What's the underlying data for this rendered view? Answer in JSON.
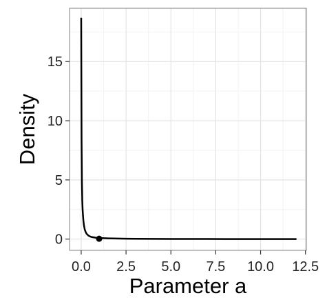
{
  "chart_data": {
    "type": "line",
    "xlabel": "Parameter a",
    "ylabel": "Density",
    "xlim": [
      -0.65,
      12.55
    ],
    "ylim": [
      -0.95,
      19.5
    ],
    "x_ticks": [
      0.0,
      2.5,
      5.0,
      7.5,
      10.0,
      12.5
    ],
    "x_tick_labels": [
      "0.0",
      "2.5",
      "5.0",
      "7.5",
      "10.0",
      "12.5"
    ],
    "y_ticks": [
      0,
      5,
      10,
      15
    ],
    "y_tick_labels": [
      "0",
      "5",
      "10",
      "15"
    ],
    "grid": true,
    "series": [
      {
        "x": [
          0.0,
          0.02,
          0.04,
          0.06,
          0.08,
          0.1,
          0.12,
          0.15,
          0.2,
          0.25,
          0.3,
          0.4,
          0.5,
          0.6,
          0.8,
          1.0,
          1.5,
          2.0,
          2.5,
          3.0,
          4.0,
          5.0,
          6.0,
          7.0,
          8.0,
          9.0,
          10.0,
          11.0,
          12.0
        ],
        "y": [
          18.7,
          8.5,
          4.8,
          3.3,
          2.5,
          2.0,
          1.6,
          1.2,
          0.8,
          0.6,
          0.45,
          0.3,
          0.22,
          0.17,
          0.12,
          0.09,
          0.06,
          0.045,
          0.035,
          0.028,
          0.02,
          0.015,
          0.012,
          0.009,
          0.007,
          0.005,
          0.004,
          0.003,
          0.002
        ]
      }
    ],
    "points": [
      {
        "x": 1.0,
        "y": 0.03
      }
    ]
  }
}
